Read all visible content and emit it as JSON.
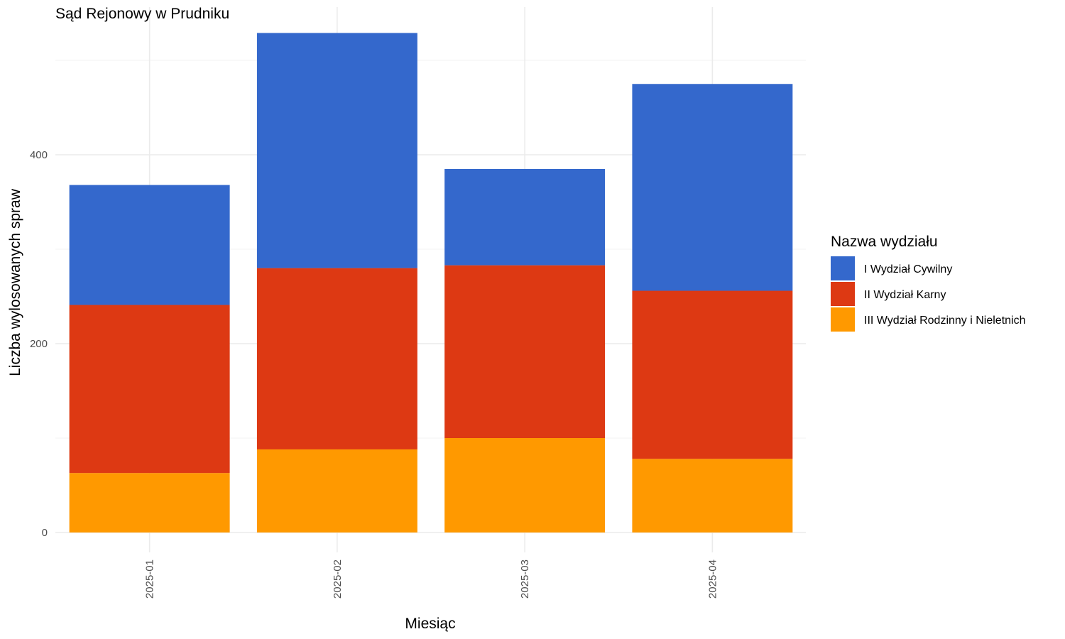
{
  "chart_data": {
    "type": "bar",
    "stacked": true,
    "title": "Sąd Rejonowy w Prudniku",
    "xlabel": "Miesiąc",
    "ylabel": "Liczba wylosowanych spraw",
    "categories": [
      "2025-01",
      "2025-02",
      "2025-03",
      "2025-04"
    ],
    "y_ticks": [
      0,
      200,
      400
    ],
    "ylim": [
      0,
      550
    ],
    "grid": true,
    "legend_position": "right",
    "legend_title": "Nazwa wydziału",
    "series": [
      {
        "name": "I Wydział Cywilny",
        "color": "#3468CC",
        "values": [
          127,
          249,
          102,
          219
        ]
      },
      {
        "name": "II Wydział Karny",
        "color": "#DD3913",
        "values": [
          178,
          192,
          183,
          178
        ]
      },
      {
        "name": "III Wydział Rodzinny i Nieletnich",
        "color": "#FF9900",
        "values": [
          63,
          88,
          100,
          78
        ]
      }
    ],
    "stack_order_bottom_to_top": [
      "III Wydział Rodzinny i Nieletnich",
      "II Wydział Karny",
      "I Wydział Cywilny"
    ]
  }
}
